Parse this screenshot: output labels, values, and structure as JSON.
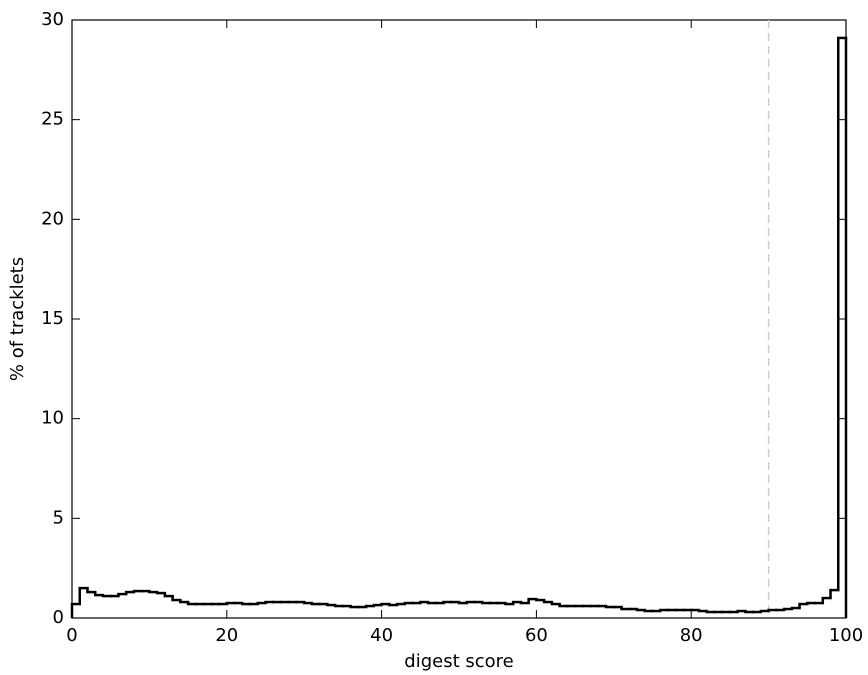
{
  "chart_data": {
    "type": "histogram",
    "histtype": "step",
    "color": "#000000",
    "xlabel": "digest score",
    "ylabel": "% of tracklets",
    "bins": [
      0,
      1,
      2,
      3,
      4,
      5,
      6,
      7,
      8,
      9,
      10,
      11,
      12,
      13,
      14,
      15,
      16,
      17,
      18,
      19,
      20,
      21,
      22,
      23,
      24,
      25,
      26,
      27,
      28,
      29,
      30,
      31,
      32,
      33,
      34,
      35,
      36,
      37,
      38,
      39,
      40,
      41,
      42,
      43,
      44,
      45,
      46,
      47,
      48,
      49,
      50,
      51,
      52,
      53,
      54,
      55,
      56,
      57,
      58,
      59,
      60,
      61,
      62,
      63,
      64,
      65,
      66,
      67,
      68,
      69,
      70,
      71,
      72,
      73,
      74,
      75,
      76,
      77,
      78,
      79,
      80,
      81,
      82,
      83,
      84,
      85,
      86,
      87,
      88,
      89,
      90,
      91,
      92,
      93,
      94,
      95,
      96,
      97,
      98,
      99,
      100
    ],
    "counts": [
      0.7,
      1.5,
      1.3,
      1.15,
      1.1,
      1.1,
      1.2,
      1.3,
      1.35,
      1.35,
      1.3,
      1.25,
      1.1,
      0.9,
      0.8,
      0.7,
      0.7,
      0.7,
      0.7,
      0.7,
      0.75,
      0.75,
      0.7,
      0.7,
      0.75,
      0.8,
      0.8,
      0.8,
      0.8,
      0.8,
      0.75,
      0.7,
      0.7,
      0.65,
      0.6,
      0.6,
      0.55,
      0.55,
      0.6,
      0.65,
      0.7,
      0.65,
      0.7,
      0.75,
      0.75,
      0.8,
      0.75,
      0.75,
      0.8,
      0.8,
      0.75,
      0.8,
      0.8,
      0.75,
      0.75,
      0.75,
      0.7,
      0.8,
      0.75,
      0.95,
      0.9,
      0.8,
      0.7,
      0.6,
      0.6,
      0.6,
      0.6,
      0.6,
      0.6,
      0.55,
      0.55,
      0.45,
      0.45,
      0.4,
      0.35,
      0.35,
      0.4,
      0.4,
      0.4,
      0.4,
      0.4,
      0.35,
      0.3,
      0.3,
      0.3,
      0.3,
      0.35,
      0.3,
      0.3,
      0.35,
      0.4,
      0.4,
      0.45,
      0.5,
      0.7,
      0.75,
      0.75,
      1.0,
      1.4,
      29.1
    ],
    "xlim": [
      0,
      100
    ],
    "xticks": [
      0,
      20,
      40,
      60,
      80,
      100
    ],
    "ylim": [
      0,
      30
    ],
    "yticks": [
      0,
      5,
      10,
      15,
      20,
      25,
      30
    ],
    "vlines": [
      {
        "x": 90,
        "color": "#cccccc",
        "dashed": true
      }
    ]
  }
}
